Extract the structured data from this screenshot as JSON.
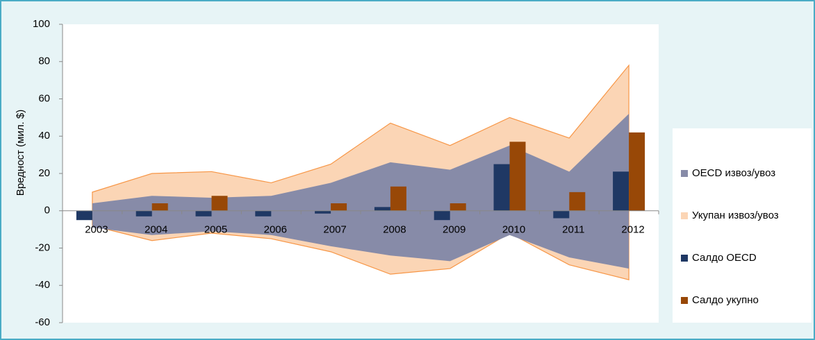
{
  "chart_data": {
    "type": "combo",
    "y_label": "Вредност (мил. $)",
    "categories": [
      "2003",
      "2004",
      "2005",
      "2006",
      "2007",
      "2008",
      "2009",
      "2010",
      "2011",
      "2012"
    ],
    "ylim": [
      -60,
      100
    ],
    "yticks": [
      -60,
      -40,
      -20,
      0,
      20,
      40,
      60,
      80,
      100
    ],
    "series": [
      {
        "name": "Укупан извоз/увоз",
        "type": "area",
        "color": "#fbd5b5",
        "edge_color": "#f79646",
        "values": [
          10,
          20,
          21,
          15,
          25,
          47,
          35,
          50,
          39,
          78
        ],
        "lower": [
          -8,
          -16,
          -12,
          -15,
          -22,
          -34,
          -31,
          -12,
          -29,
          -37
        ]
      },
      {
        "name": "OECD извоз/увоз",
        "type": "area",
        "color": "#878ba8",
        "values": [
          4,
          8,
          7,
          8,
          15,
          26,
          22,
          35,
          21,
          52
        ],
        "lower": [
          -9,
          -13,
          -11,
          -13,
          -19,
          -24,
          -27,
          -13,
          -25,
          -31
        ]
      },
      {
        "name": "Салдо OECD",
        "type": "bar",
        "color": "#1f3864",
        "values": [
          -5,
          -3,
          -3,
          -3,
          -1.5,
          2,
          -5,
          25,
          -4,
          21
        ]
      },
      {
        "name": "Салдо укупно",
        "type": "bar",
        "color": "#984807",
        "values": [
          0,
          4,
          8,
          0,
          4,
          13,
          4,
          37,
          10,
          42
        ]
      }
    ],
    "legend_order": [
      1,
      0,
      2,
      3
    ]
  }
}
